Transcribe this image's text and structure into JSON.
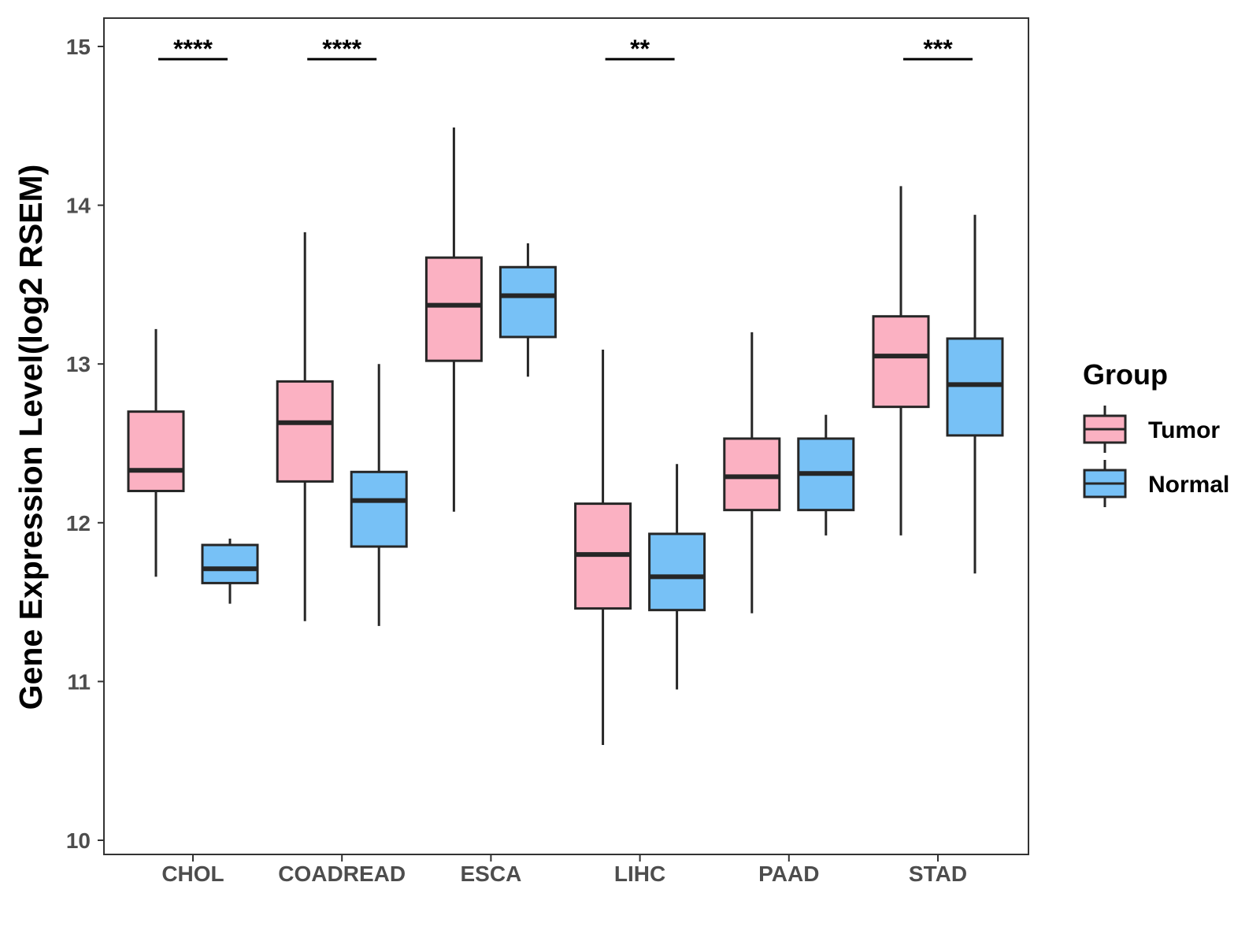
{
  "chart_data": {
    "type": "box",
    "title": "",
    "xlabel": "",
    "ylabel": "Gene Expression Level(log2 RSEM)",
    "ylim": [
      10,
      15
    ],
    "y_ticks": [
      10,
      11,
      12,
      13,
      14,
      15
    ],
    "grid": false,
    "categories": [
      "CHOL",
      "COADREAD",
      "ESCA",
      "LIHC",
      "PAAD",
      "STAD"
    ],
    "legend": {
      "title": "Group",
      "position": "right",
      "entries": [
        "Tumor",
        "Normal"
      ]
    },
    "series": [
      {
        "name": "Tumor",
        "color": "#FBB1C2",
        "boxes": [
          {
            "min": 11.66,
            "q1": 12.2,
            "median": 12.33,
            "q3": 12.7,
            "max": 13.22
          },
          {
            "min": 11.38,
            "q1": 12.26,
            "median": 12.63,
            "q3": 12.89,
            "max": 13.83
          },
          {
            "min": 12.07,
            "q1": 13.02,
            "median": 13.37,
            "q3": 13.67,
            "max": 14.49
          },
          {
            "min": 10.6,
            "q1": 11.46,
            "median": 11.8,
            "q3": 12.12,
            "max": 13.09
          },
          {
            "min": 11.43,
            "q1": 12.08,
            "median": 12.29,
            "q3": 12.53,
            "max": 13.2
          },
          {
            "min": 11.92,
            "q1": 12.73,
            "median": 13.05,
            "q3": 13.3,
            "max": 14.12
          }
        ]
      },
      {
        "name": "Normal",
        "color": "#77C1F6",
        "boxes": [
          {
            "min": 11.49,
            "q1": 11.62,
            "median": 11.71,
            "q3": 11.86,
            "max": 11.9
          },
          {
            "min": 11.35,
            "q1": 11.85,
            "median": 12.14,
            "q3": 12.32,
            "max": 13.0
          },
          {
            "min": 12.92,
            "q1": 13.17,
            "median": 13.43,
            "q3": 13.61,
            "max": 13.76
          },
          {
            "min": 10.95,
            "q1": 11.45,
            "median": 11.66,
            "q3": 11.93,
            "max": 12.37
          },
          {
            "min": 11.92,
            "q1": 12.08,
            "median": 12.31,
            "q3": 12.53,
            "max": 12.68
          },
          {
            "min": 11.68,
            "q1": 12.55,
            "median": 12.87,
            "q3": 13.16,
            "max": 13.94
          }
        ]
      }
    ],
    "annotations": [
      {
        "category": "CHOL",
        "label": "****",
        "y": 14.92
      },
      {
        "category": "COADREAD",
        "label": "****",
        "y": 14.92
      },
      {
        "category": "LIHC",
        "label": "**",
        "y": 14.92
      },
      {
        "category": "STAD",
        "label": "***",
        "y": 14.92
      }
    ]
  }
}
